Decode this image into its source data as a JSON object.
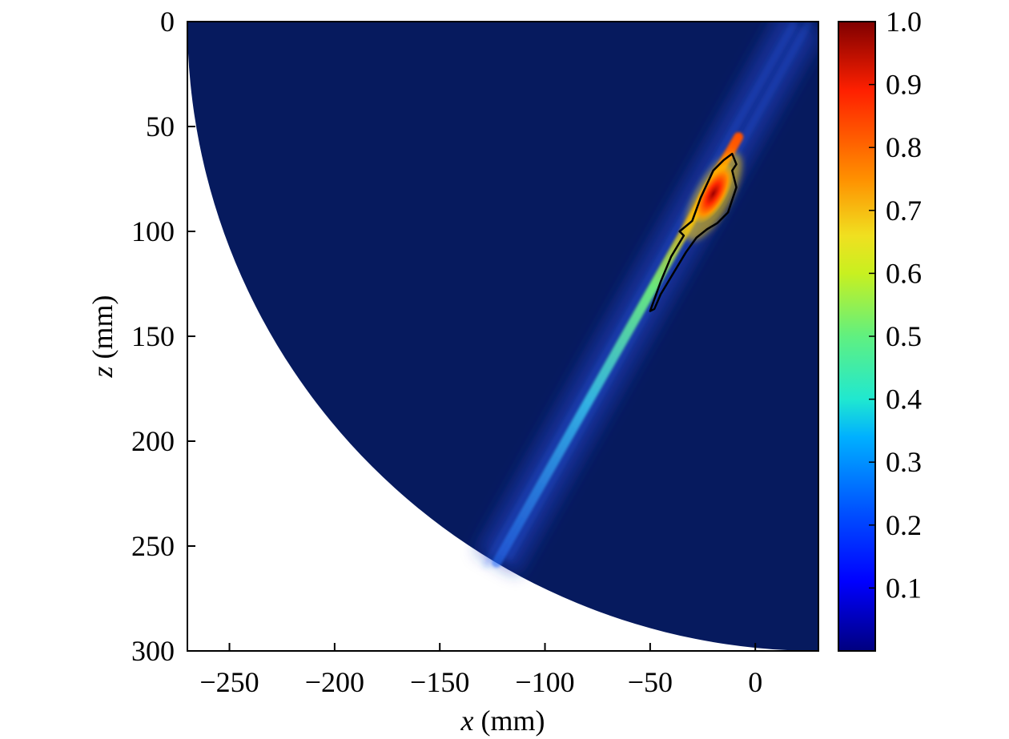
{
  "chart_data": {
    "type": "heatmap",
    "xlabel_var": "x",
    "xlabel_unit": "(mm)",
    "ylabel_var": "z",
    "ylabel_unit": "(mm)",
    "xlim": [
      -270,
      30
    ],
    "ylim": [
      0,
      300
    ],
    "y_axis_inverted": true,
    "x_ticks": [
      -250,
      -200,
      -150,
      -100,
      -50,
      0
    ],
    "x_tick_labels": [
      "−250",
      "−200",
      "−150",
      "−100",
      "−50",
      "0"
    ],
    "y_ticks": [
      0,
      50,
      100,
      150,
      200,
      250,
      300
    ],
    "y_tick_labels": [
      "0",
      "50",
      "100",
      "150",
      "200",
      "250",
      "300"
    ],
    "colorbar": {
      "colormap": "jet",
      "range": [
        0,
        1.0
      ],
      "ticks": [
        0.1,
        0.2,
        0.3,
        0.4,
        0.5,
        0.6,
        0.7,
        0.8,
        0.9,
        1.0
      ],
      "tick_labels": [
        "0.1",
        "0.2",
        "0.3",
        "0.4",
        "0.5",
        "0.6",
        "0.7",
        "0.8",
        "0.9",
        "1.0"
      ]
    },
    "domain_boundary": {
      "shape": "circular-arc",
      "center_x": 30,
      "center_z": 0,
      "radius": 300
    },
    "features": {
      "focal_peak": {
        "x": -20,
        "z": 82,
        "value": 1.0
      },
      "beam_axis": {
        "from_x": -123,
        "from_z": 258,
        "to_x": 22,
        "to_z": 0
      },
      "contour_level": 0.5,
      "contour_polygon_xz": [
        [
          -50,
          138
        ],
        [
          -45,
          124
        ],
        [
          -40,
          112
        ],
        [
          -34,
          102
        ],
        [
          -36,
          100
        ],
        [
          -30,
          95
        ],
        [
          -26,
          84
        ],
        [
          -20,
          71
        ],
        [
          -15,
          66
        ],
        [
          -11,
          63
        ],
        [
          -9,
          68
        ],
        [
          -11,
          71
        ],
        [
          -9,
          79
        ],
        [
          -13,
          91
        ],
        [
          -18,
          96
        ],
        [
          -23,
          99
        ],
        [
          -28,
          103
        ],
        [
          -33,
          110
        ],
        [
          -39,
          120
        ],
        [
          -45,
          130
        ],
        [
          -48,
          137
        ]
      ]
    }
  }
}
